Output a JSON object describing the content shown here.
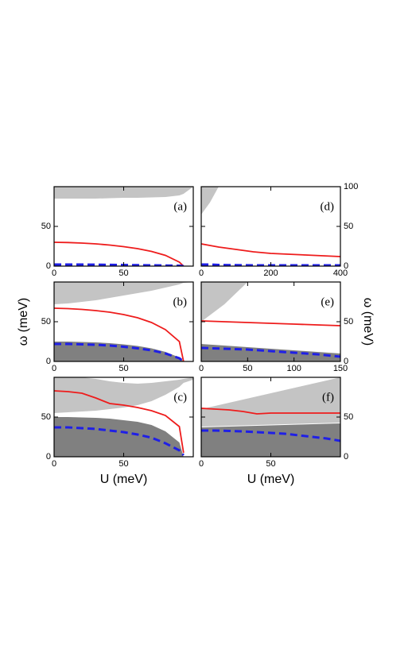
{
  "chart_data": [
    {
      "type": "line",
      "title": "(a)",
      "yaxis_side": "left",
      "x": [
        0,
        10,
        20,
        30,
        40,
        50,
        60,
        70,
        80,
        90,
        93,
        100
      ],
      "xlim": [
        0,
        100
      ],
      "xticks": [
        0,
        50
      ],
      "ylim": [
        0,
        100
      ],
      "yticks": [
        0,
        50
      ],
      "series": [
        {
          "color": "#c4c4c4",
          "fill": "above",
          "values": [
            85,
            85,
            85,
            85,
            85.5,
            86,
            86,
            86.5,
            87,
            89,
            91,
            100
          ]
        },
        {
          "color": "#ee1c1c",
          "values": [
            30,
            29.7,
            29,
            28,
            26.5,
            24.5,
            22,
            18.5,
            13.5,
            5,
            0,
            null
          ]
        },
        {
          "color": "#1f1fe6",
          "dash": true,
          "values": [
            2,
            2,
            2,
            1.8,
            1.6,
            1.4,
            1.2,
            1,
            0.8,
            0.5,
            0,
            null
          ]
        }
      ]
    },
    {
      "type": "line",
      "title": "(b)",
      "yaxis_side": "left",
      "ylabel": "ω (meV)",
      "x": [
        0,
        10,
        20,
        30,
        40,
        50,
        60,
        70,
        80,
        90,
        93,
        100
      ],
      "xlim": [
        0,
        100
      ],
      "xticks": [
        0,
        50
      ],
      "ylim": [
        0,
        100
      ],
      "yticks": [
        0,
        50
      ],
      "series": [
        {
          "color": "#c4c4c4",
          "fill": "above",
          "values": [
            72,
            73,
            75,
            77,
            80,
            83,
            86,
            89,
            93,
            97,
            99,
            100
          ]
        },
        {
          "color": "#808080",
          "fill": "below",
          "values": [
            25,
            25,
            24.5,
            24,
            23,
            21.5,
            19.5,
            16.5,
            12,
            5,
            0,
            null
          ]
        },
        {
          "color": "#ee1c1c",
          "values": [
            67,
            66.5,
            65.5,
            64,
            62,
            59,
            55,
            49,
            40,
            25,
            0,
            null
          ]
        },
        {
          "color": "#1f1fe6",
          "dash": true,
          "values": [
            22,
            22,
            21.5,
            21,
            20,
            18.5,
            16.5,
            14,
            10,
            4,
            0,
            null
          ]
        }
      ]
    },
    {
      "type": "line",
      "title": "(c)",
      "yaxis_side": "left",
      "xlabel": "U (meV)",
      "x": [
        0,
        10,
        20,
        30,
        40,
        50,
        60,
        70,
        80,
        90,
        93,
        100
      ],
      "xlim": [
        0,
        100
      ],
      "xticks": [
        0,
        50
      ],
      "ylim": [
        0,
        100
      ],
      "yticks": [
        0,
        50
      ],
      "series": [
        {
          "color": "#c4c4c4",
          "fill": "above",
          "values": [
            55,
            56,
            57,
            58,
            60,
            62,
            65,
            70,
            78,
            88,
            93,
            97
          ]
        },
        {
          "color": "#ffffff",
          "fill": "above",
          "values": [
            100,
            100,
            100,
            98,
            95,
            93,
            92,
            93,
            95,
            97,
            98,
            100
          ]
        },
        {
          "color": "#808080",
          "fill": "below",
          "values": [
            50,
            50,
            49.5,
            49,
            48,
            46,
            44,
            40,
            32,
            18,
            0,
            null
          ]
        },
        {
          "color": "#ee1c1c",
          "values": [
            83,
            82,
            80,
            74,
            67,
            65,
            62,
            58,
            52,
            38,
            5,
            null
          ]
        },
        {
          "color": "#1f1fe6",
          "dash": true,
          "values": [
            37,
            37,
            36,
            35,
            33,
            31,
            28,
            24,
            17,
            8,
            2,
            null
          ]
        }
      ]
    },
    {
      "type": "line",
      "title": "(d)",
      "yaxis_side": "right",
      "x": [
        0,
        25,
        50,
        100,
        150,
        200,
        250,
        300,
        350,
        400
      ],
      "xlim": [
        0,
        400
      ],
      "xticks": [
        0,
        200,
        400
      ],
      "ylim": [
        0,
        100
      ],
      "yticks": [
        0,
        50,
        100
      ],
      "series": [
        {
          "color": "#c4c4c4",
          "fill": "above",
          "values": [
            65,
            80,
            100,
            null,
            null,
            null,
            null,
            null,
            null,
            null
          ]
        },
        {
          "color": "#ee1c1c",
          "values": [
            28,
            26,
            24,
            21,
            18,
            16,
            15,
            14,
            13,
            12
          ]
        },
        {
          "color": "#1f1fe6",
          "dash": true,
          "values": [
            2,
            2,
            1.5,
            1.2,
            1,
            1,
            1,
            1,
            1,
            1
          ]
        }
      ]
    },
    {
      "type": "line",
      "title": "(e)",
      "yaxis_side": "right",
      "ylabel": "ω (meV)",
      "x": [
        0,
        25,
        50,
        75,
        100,
        125,
        150
      ],
      "xlim": [
        0,
        150
      ],
      "xticks": [
        0,
        50,
        100,
        150
      ],
      "ylim": [
        0,
        100
      ],
      "yticks": [
        0,
        50
      ],
      "series": [
        {
          "color": "#c4c4c4",
          "fill": "above",
          "values": [
            50,
            72,
            100,
            null,
            null,
            null,
            null
          ]
        },
        {
          "color": "#808080",
          "fill": "below",
          "values": [
            22,
            20,
            18,
            16,
            14,
            12,
            10
          ]
        },
        {
          "color": "#ee1c1c",
          "values": [
            51,
            50,
            49,
            48,
            47,
            46,
            45
          ]
        },
        {
          "color": "#1f1fe6",
          "dash": true,
          "values": [
            17,
            16,
            15,
            13,
            11,
            9,
            6
          ]
        }
      ]
    },
    {
      "type": "line",
      "title": "(f)",
      "yaxis_side": "right",
      "xlabel": "U (meV)",
      "x": [
        0,
        10,
        20,
        30,
        40,
        50,
        60,
        70,
        80,
        90,
        100
      ],
      "xlim": [
        0,
        100
      ],
      "xticks": [
        0,
        50
      ],
      "ylim": [
        0,
        100
      ],
      "yticks": [
        0,
        50
      ],
      "series": [
        {
          "color": "#c4c4c4",
          "fill": "above",
          "values": [
            38,
            38.5,
            39,
            39.5,
            40,
            40.5,
            41,
            41.5,
            42,
            42.5,
            43
          ]
        },
        {
          "color": "#ffffff",
          "fill": "above",
          "values": [
            60,
            64,
            68,
            72,
            76,
            80,
            84,
            88,
            92,
            96,
            100
          ]
        },
        {
          "color": "#808080",
          "fill": "below",
          "values": [
            37,
            37.5,
            38,
            38.5,
            39,
            39.5,
            40,
            40.5,
            41,
            41.5,
            42
          ]
        },
        {
          "color": "#ee1c1c",
          "values": [
            61,
            60,
            59,
            57,
            54,
            55,
            55,
            55,
            55,
            55,
            55
          ]
        },
        {
          "color": "#1f1fe6",
          "dash": true,
          "values": [
            33,
            33,
            32.5,
            32,
            31,
            30,
            29,
            27,
            25,
            23,
            20
          ]
        }
      ]
    }
  ]
}
